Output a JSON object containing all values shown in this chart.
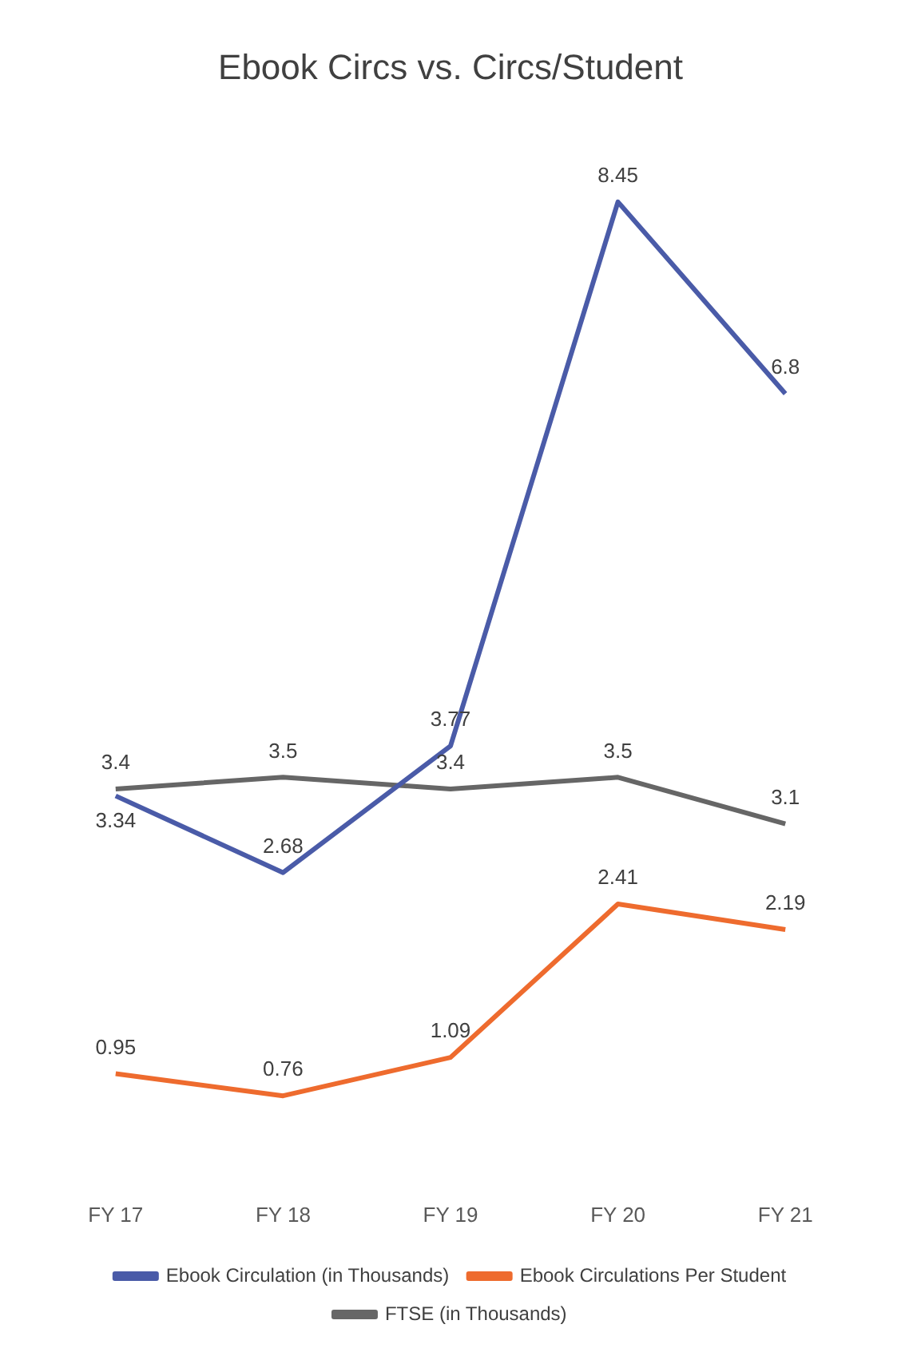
{
  "chart_data": {
    "type": "line",
    "title": "Ebook Circs vs. Circs/Student",
    "categories": [
      "FY 17",
      "FY 18",
      "FY 19",
      "FY 20",
      "FY 21"
    ],
    "series": [
      {
        "name": "Ebook Circulation (in Thousands)",
        "color": "#4a5ba8",
        "values": [
          3.34,
          2.68,
          3.77,
          8.45,
          6.8
        ]
      },
      {
        "name": "Ebook Circulations Per Student",
        "color": "#ee6b2e",
        "values": [
          0.95,
          0.76,
          1.09,
          2.41,
          2.19
        ]
      },
      {
        "name": "FTSE (in Thousands)",
        "color": "#666666",
        "values": [
          3.4,
          3.5,
          3.4,
          3.5,
          3.1
        ]
      }
    ],
    "data_labels": true,
    "legend": "bottom",
    "marker": "none",
    "line_style": "solid"
  }
}
